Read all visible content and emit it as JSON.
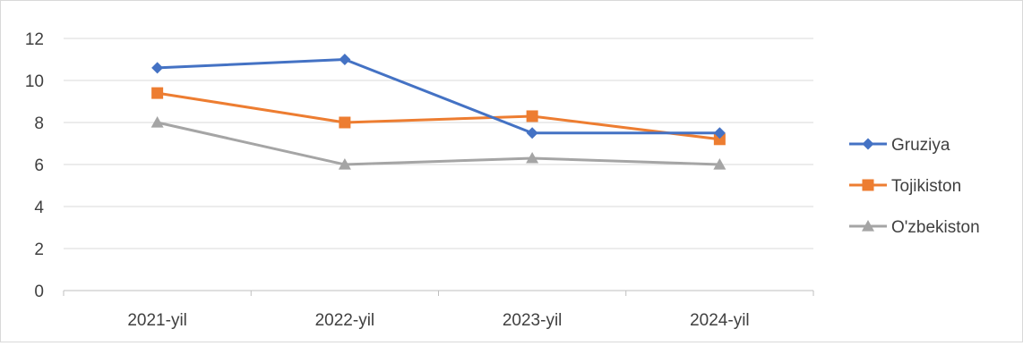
{
  "chart_data": {
    "type": "line",
    "categories": [
      "2021-yil",
      "2022-yil",
      "2023-yil",
      "2024-yil"
    ],
    "series": [
      {
        "name": "Gruziya",
        "values": [
          10.6,
          11.0,
          7.5,
          7.5
        ],
        "color": "#4472c4",
        "marker": "diamond"
      },
      {
        "name": "Tojikiston",
        "values": [
          9.4,
          8.0,
          8.3,
          7.2
        ],
        "color": "#ed7d31",
        "marker": "square"
      },
      {
        "name": "O'zbekiston",
        "values": [
          8.0,
          6.0,
          6.3,
          6.0
        ],
        "color": "#a5a5a5",
        "marker": "triangle"
      }
    ],
    "ylim": [
      0,
      12
    ],
    "yticks": [
      0,
      2,
      4,
      6,
      8,
      10,
      12
    ],
    "grid": true,
    "legend": "right",
    "title": "",
    "xlabel": "",
    "ylabel": ""
  }
}
